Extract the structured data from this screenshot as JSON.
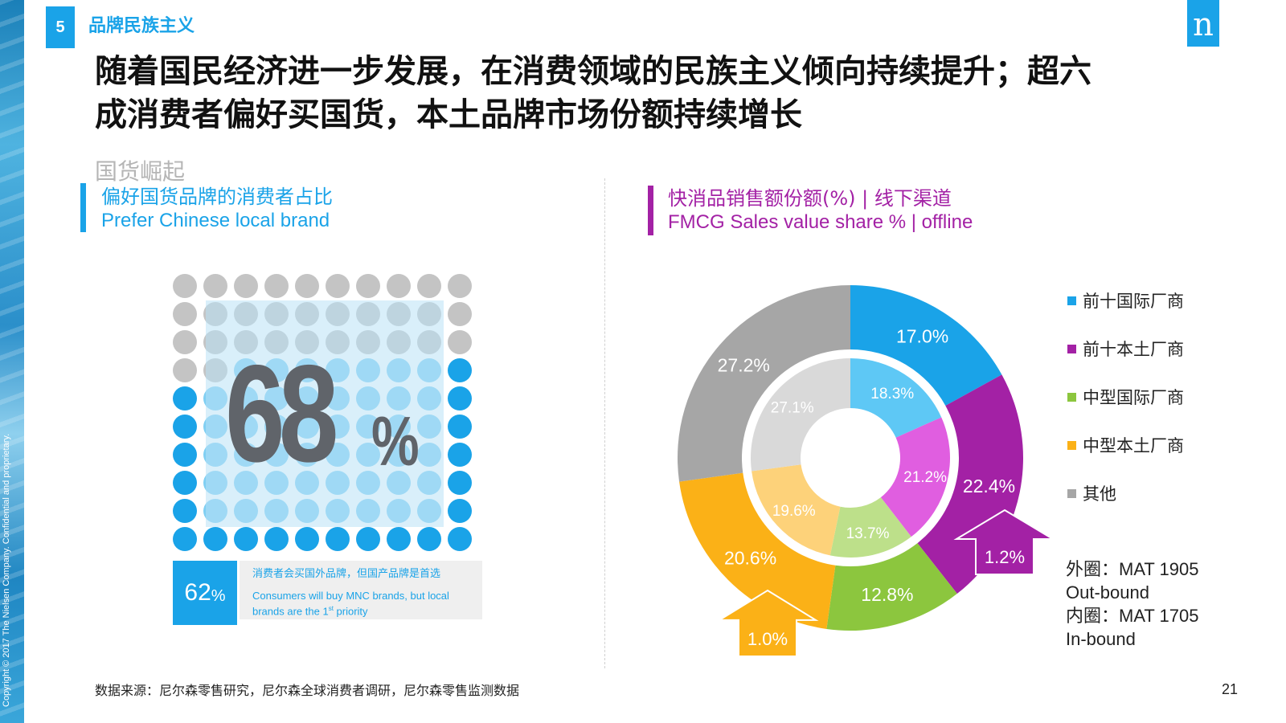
{
  "sidebar": {
    "copyright": "Copyright © 2017 The Nielsen Company. Confidential and proprietary."
  },
  "header": {
    "section_number": "5",
    "section_title": "品牌民族主义",
    "logo_text": "n",
    "headline_line1": "随着国民经济进一步发展，在消费领域的民族主义倾向持续提升；超六",
    "headline_line2": "成消费者偏好买国货，本土品牌市场份额持续增长",
    "kicker": "国货崛起"
  },
  "left_panel": {
    "title_cn": "偏好国货品牌的消费者占比",
    "title_en": "Prefer Chinese local brand",
    "big_value": "68",
    "big_unit": "%",
    "stat_value": "62",
    "stat_unit": "%",
    "stat_desc_cn": "消费者会买国外品牌，但国产品牌是首选",
    "stat_desc_en_1": "Consumers will buy MNC brands, but local",
    "stat_desc_en_2": "brands are the 1",
    "stat_desc_en_sup": "st",
    "stat_desc_en_3": " priority",
    "dot_grid": {
      "rows": 10,
      "cols": 10,
      "gray_dots": 32,
      "blue_dots": 68,
      "colors": {
        "gray": "#c4c4c4",
        "blue": "#1aa3e8",
        "light_blue": "#7fcff3"
      }
    }
  },
  "right_panel": {
    "title_cn": "快消品销售额份额(%) | 线下渠道",
    "title_en": "FMCG Sales value share % | offline",
    "notes_line1": "外圈：MAT 1905",
    "notes_line2": "Out-bound",
    "notes_line3": "内圈：MAT 1705",
    "notes_line4": "In-bound"
  },
  "chart_data": {
    "type": "pie",
    "categories": [
      "前十国际厂商",
      "前十本土厂商",
      "中型国际厂商",
      "中型本土厂商",
      "其他"
    ],
    "series": [
      {
        "name": "外圈：MAT 1905 Out-bound",
        "values": [
          17.0,
          22.4,
          12.8,
          20.6,
          27.2
        ],
        "labels": [
          "17.0%",
          "22.4%",
          "12.8%",
          "20.6%",
          "27.2%"
        ]
      },
      {
        "name": "内圈：MAT 1705 In-bound",
        "values": [
          18.3,
          21.2,
          13.7,
          19.6,
          27.1
        ],
        "labels": [
          "18.3%",
          "21.2%",
          "13.7%",
          "19.6%",
          "27.1%"
        ]
      }
    ],
    "colors_outer": [
      "#1aa3e8",
      "#a321a5",
      "#8cc63e",
      "#fbb117",
      "#a6a6a6"
    ],
    "colors_inner": [
      "#5ec8f5",
      "#e05ee0",
      "#bde08a",
      "#fdd27a",
      "#d9d9d9"
    ],
    "annotations": [
      {
        "text": "1.2%",
        "category": "前十本土厂商",
        "direction": "up"
      },
      {
        "text": "1.0%",
        "category": "中型本土厂商",
        "direction": "up"
      }
    ],
    "legend_position": "right"
  },
  "footer": {
    "source": "数据来源：尼尔森零售研究，尼尔森全球消费者调研，尼尔森零售监测数据",
    "page_number": "21"
  }
}
